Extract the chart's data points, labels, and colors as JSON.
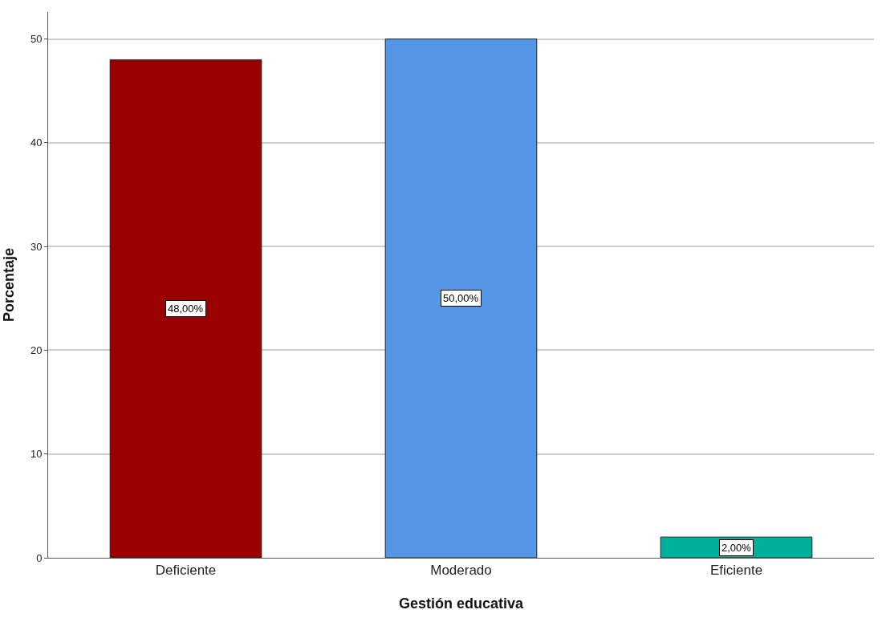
{
  "chart_data": {
    "type": "bar",
    "xlabel": "Gestión educativa",
    "ylabel": "Porcentaje",
    "categories": [
      "Deficiente",
      "Moderado",
      "Eficiente"
    ],
    "values": [
      48,
      50,
      2
    ],
    "colors": [
      "#990000",
      "#5596e6",
      "#00b09b"
    ],
    "value_labels": [
      "48,00%",
      "50,00%",
      "2,00%"
    ],
    "ylim": [
      0,
      52.6
    ],
    "yticks": [
      0,
      10,
      20,
      30,
      40,
      50
    ],
    "grid": "y"
  }
}
